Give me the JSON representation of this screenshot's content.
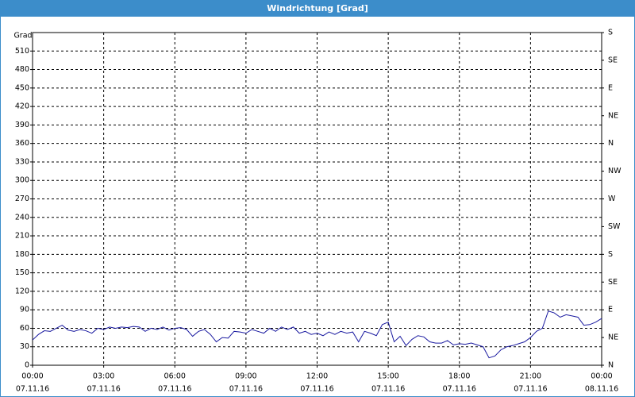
{
  "window_title": "Windrichtung [Grad]",
  "chart_data": {
    "type": "line",
    "y_label": "Grad",
    "x": [
      0,
      0.25,
      0.5,
      0.75,
      1,
      1.25,
      1.5,
      1.75,
      2,
      2.25,
      2.5,
      2.75,
      3,
      3.25,
      3.5,
      3.75,
      4,
      4.25,
      4.5,
      4.75,
      5,
      5.25,
      5.5,
      5.75,
      6,
      6.25,
      6.5,
      6.75,
      7,
      7.25,
      7.5,
      7.75,
      8,
      8.25,
      8.5,
      8.75,
      9,
      9.25,
      9.5,
      9.75,
      10,
      10.25,
      10.5,
      10.75,
      11,
      11.25,
      11.5,
      11.75,
      12,
      12.25,
      12.5,
      12.75,
      13,
      13.25,
      13.5,
      13.75,
      14,
      14.25,
      14.5,
      14.75,
      15,
      15.25,
      15.5,
      15.75,
      16,
      16.25,
      16.5,
      16.75,
      17,
      17.25,
      17.5,
      17.75,
      18,
      18.25,
      18.5,
      18.75,
      19,
      19.25,
      19.5,
      19.75,
      20,
      20.25,
      20.5,
      20.75,
      21,
      21.25,
      21.5,
      21.75,
      22,
      22.25,
      22.5,
      22.75,
      23,
      23.25,
      23.5,
      23.75,
      24
    ],
    "series": [
      {
        "color": "#1a1aa0",
        "values": [
          41,
          50,
          56,
          55,
          60,
          65,
          57,
          55,
          58,
          56,
          52,
          60,
          58,
          62,
          60,
          62,
          61,
          63,
          62,
          55,
          60,
          58,
          62,
          57,
          60,
          61,
          58,
          47,
          55,
          58,
          50,
          38,
          45,
          44,
          55,
          54,
          52,
          58,
          55,
          52,
          60,
          55,
          62,
          58,
          62,
          52,
          55,
          50,
          52,
          48,
          54,
          50,
          55,
          52,
          54,
          38,
          55,
          52,
          48,
          66,
          70,
          38,
          47,
          32,
          42,
          48,
          46,
          38,
          36,
          36,
          40,
          33,
          35,
          34,
          36,
          33,
          30,
          12,
          15,
          25,
          30,
          32,
          35,
          38,
          45,
          55,
          60,
          88,
          85,
          78,
          82,
          80,
          78,
          65,
          66,
          70,
          76
        ]
      }
    ],
    "xlim": [
      0,
      24
    ],
    "xticks": [
      {
        "value": 0,
        "label": "00:00"
      },
      {
        "value": 3,
        "label": "03:00"
      },
      {
        "value": 6,
        "label": "06:00"
      },
      {
        "value": 9,
        "label": "09:00"
      },
      {
        "value": 12,
        "label": "12:00"
      },
      {
        "value": 15,
        "label": "15:00"
      },
      {
        "value": 18,
        "label": "18:00"
      },
      {
        "value": 21,
        "label": "21:00"
      },
      {
        "value": 24,
        "label": "00:00"
      }
    ],
    "xtick_dates": [
      "07.11.16",
      "07.11.16",
      "07.11.16",
      "07.11.16",
      "07.11.16",
      "07.11.16",
      "07.11.16",
      "07.11.16",
      "08.11.16"
    ],
    "ylim": [
      0,
      540
    ],
    "yticks": [
      0,
      30,
      60,
      90,
      120,
      150,
      180,
      210,
      240,
      270,
      300,
      330,
      360,
      390,
      420,
      450,
      480,
      510
    ],
    "y2lim": [
      0,
      540
    ],
    "y2ticks": [
      {
        "value": 0,
        "label": "N"
      },
      {
        "value": 45,
        "label": "NE"
      },
      {
        "value": 90,
        "label": "E"
      },
      {
        "value": 135,
        "label": "SE"
      },
      {
        "value": 180,
        "label": "S"
      },
      {
        "value": 225,
        "label": "SW"
      },
      {
        "value": 270,
        "label": "W"
      },
      {
        "value": 315,
        "label": "NW"
      },
      {
        "value": 360,
        "label": "N"
      },
      {
        "value": 405,
        "label": "NE"
      },
      {
        "value": 450,
        "label": "E"
      },
      {
        "value": 495,
        "label": "SE"
      },
      {
        "value": 540,
        "label": "S"
      }
    ],
    "grid": true
  }
}
